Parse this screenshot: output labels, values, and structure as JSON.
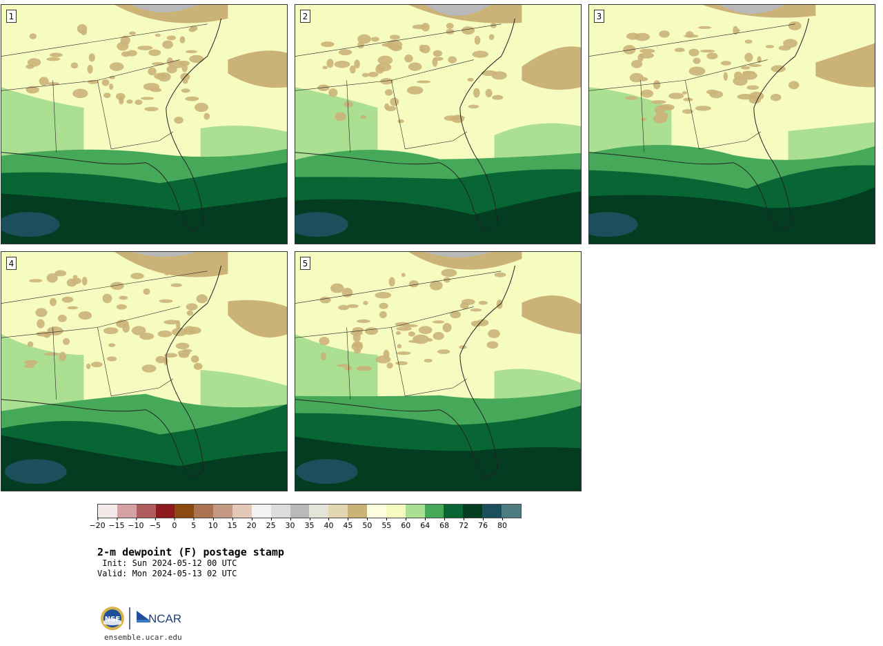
{
  "panels": [
    {
      "label": "1"
    },
    {
      "label": "2"
    },
    {
      "label": "3"
    },
    {
      "label": "4"
    },
    {
      "label": "5"
    }
  ],
  "colorbar": {
    "colors": [
      "#f4e9e9",
      "#d4a1a4",
      "#b05d60",
      "#8c1a1f",
      "#8c4a10",
      "#ab7350",
      "#c49b82",
      "#e2c8b6",
      "#f2f2f2",
      "#dcdcdc",
      "#b9b9b9",
      "#e4e4d8",
      "#e3d6b3",
      "#cbb378",
      "#fdfde0",
      "#f6fbbf",
      "#abdf92",
      "#46a95a",
      "#076634",
      "#033c21",
      "#1a4f5b",
      "#4f7c80"
    ],
    "ticks": [
      "−20",
      "−15",
      "−10",
      "−5",
      "0",
      "5",
      "10",
      "15",
      "20",
      "25",
      "30",
      "35",
      "40",
      "45",
      "50",
      "55",
      "60",
      "64",
      "68",
      "72",
      "76",
      "80"
    ]
  },
  "title": "2-m dewpoint (F) postage stamp",
  "init": " Init: Sun 2024-05-12 00 UTC",
  "valid": "Valid: Mon 2024-05-13 02 UTC",
  "footer": {
    "logo1": "NSF",
    "logo2": "NCAR",
    "url": "ensemble.ucar.edu"
  }
}
